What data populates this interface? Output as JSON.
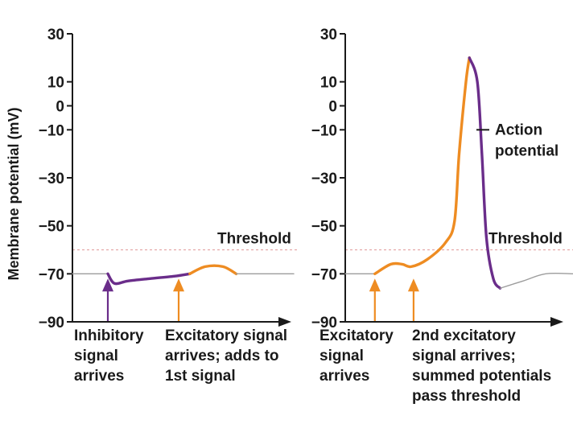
{
  "chart_data": [
    {
      "type": "line",
      "ylabel": "Membrane potential (mV)",
      "ylim": [
        -90,
        30
      ],
      "y_ticks": [
        "30",
        "10",
        "0",
        "−10",
        "−30",
        "−50",
        "−70",
        "−90"
      ],
      "y_tick_values": [
        30,
        10,
        0,
        -10,
        -30,
        -50,
        -70,
        -90
      ],
      "threshold_value": -60,
      "threshold_label": "Threshold",
      "resting_value": -70,
      "x_domain": [
        0,
        10
      ],
      "series": [
        {
          "color": "#9c9c9c",
          "points": [
            [
              0,
              -70
            ],
            [
              1.6,
              -70
            ]
          ]
        },
        {
          "color": "#6a2d8a",
          "points": [
            [
              1.6,
              -70
            ],
            [
              1.9,
              -74
            ],
            [
              2.5,
              -73
            ],
            [
              3.5,
              -72
            ],
            [
              4.6,
              -71
            ],
            [
              5.3,
              -70
            ]
          ]
        },
        {
          "color": "#ee8c22",
          "points": [
            [
              5.3,
              -70
            ],
            [
              6.0,
              -67
            ],
            [
              6.8,
              -67
            ],
            [
              7.4,
              -70
            ]
          ]
        },
        {
          "color": "#9c9c9c",
          "points": [
            [
              7.4,
              -70
            ],
            [
              10,
              -70
            ]
          ]
        }
      ],
      "arrows": [
        {
          "x": 1.6,
          "color": "#6a2d8a",
          "label": "Inhibitory\nsignal\narrives"
        },
        {
          "x": 4.8,
          "color": "#ee8c22",
          "label": "Excitatory signal\narrives; adds to\n1st signal"
        }
      ]
    },
    {
      "type": "line",
      "ylim": [
        -90,
        30
      ],
      "y_ticks": [
        "30",
        "10",
        "0",
        "−10",
        "−30",
        "−50",
        "−70",
        "−90"
      ],
      "y_tick_values": [
        30,
        10,
        0,
        -10,
        -30,
        -50,
        -70,
        -90
      ],
      "threshold_value": -60,
      "threshold_label": "Threshold",
      "resting_value": -70,
      "x_domain": [
        0,
        10
      ],
      "series": [
        {
          "color": "#9c9c9c",
          "points": [
            [
              0,
              -70
            ],
            [
              1.3,
              -70
            ]
          ]
        },
        {
          "color": "#ee8c22",
          "points": [
            [
              1.3,
              -70
            ],
            [
              2.0,
              -66
            ],
            [
              2.5,
              -66
            ],
            [
              2.9,
              -67
            ],
            [
              3.6,
              -64
            ],
            [
              4.4,
              -57
            ],
            [
              4.8,
              -48
            ],
            [
              5.0,
              -20
            ],
            [
              5.3,
              10
            ],
            [
              5.45,
              20
            ]
          ]
        },
        {
          "color": "#6a2d8a",
          "points": [
            [
              5.45,
              20
            ],
            [
              5.8,
              10
            ],
            [
              6.0,
              -20
            ],
            [
              6.2,
              -55
            ],
            [
              6.5,
              -72
            ],
            [
              6.8,
              -76
            ]
          ]
        },
        {
          "color": "#9c9c9c",
          "points": [
            [
              6.8,
              -76
            ],
            [
              7.8,
              -73
            ],
            [
              8.8,
              -70
            ],
            [
              10,
              -70
            ]
          ]
        }
      ],
      "arrows": [
        {
          "x": 1.3,
          "color": "#ee8c22",
          "label": "Excitatory\nsignal\narrives"
        },
        {
          "x": 3.0,
          "color": "#ee8c22",
          "label": "2nd excitatory\nsignal arrives;\nsummed potentials\npass threshold"
        }
      ],
      "callout": "Action\npotential"
    }
  ]
}
